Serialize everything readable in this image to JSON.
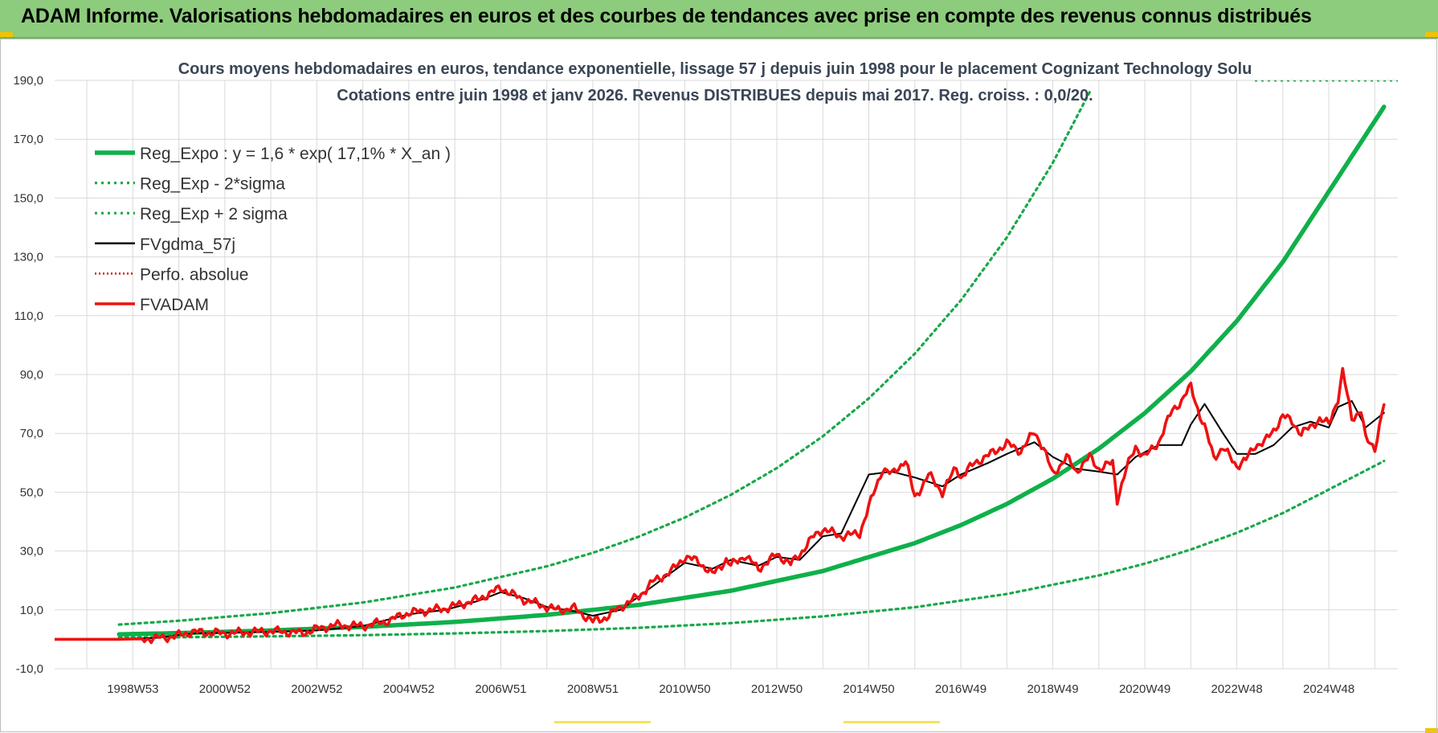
{
  "banner": {
    "title": "ADAM Informe. Valorisations hebdomadaires en euros et des courbes de tendances avec prise en compte des revenus connus distribués"
  },
  "colors": {
    "reg_expo": "#0fb04a",
    "reg_band": "#1aa84a",
    "fvgdma": "#000000",
    "perfo": "#e00000",
    "fvadam": "#ee1111",
    "banner": "#8dcc7c",
    "grid": "#d9d9d9"
  },
  "chart_data": {
    "type": "line",
    "title": "Cours moyens hebdomadaires en euros, tendance exponentielle, lissage 57 j depuis juin 1998 pour le placement Cognizant Technology Solu",
    "subtitle": "Cotations entre juin 1998 et janv 2026.  Revenus DISTRIBUES depuis mai 2017. Reg. croiss. : 0,0/20.",
    "xlabel": "",
    "ylabel": "",
    "xlim": [
      1997.3,
      2026.5
    ],
    "ylim": [
      -10,
      190
    ],
    "grid": true,
    "legend_position": "top-left",
    "y_ticks": [
      "-10,0",
      "10,0",
      "30,0",
      "50,0",
      "70,0",
      "90,0",
      "110,0",
      "130,0",
      "150,0",
      "170,0",
      "190,0"
    ],
    "x_ticks": [
      {
        "label": "1998W53",
        "x": 1999.0
      },
      {
        "label": "2000W52",
        "x": 2001.0
      },
      {
        "label": "2002W52",
        "x": 2003.0
      },
      {
        "label": "2004W52",
        "x": 2005.0
      },
      {
        "label": "2006W51",
        "x": 2007.0
      },
      {
        "label": "2008W51",
        "x": 2009.0
      },
      {
        "label": "2010W50",
        "x": 2011.0
      },
      {
        "label": "2012W50",
        "x": 2013.0
      },
      {
        "label": "2014W50",
        "x": 2015.0
      },
      {
        "label": "2016W49",
        "x": 2017.0
      },
      {
        "label": "2018W49",
        "x": 2019.0
      },
      {
        "label": "2020W49",
        "x": 2021.0
      },
      {
        "label": "2022W48",
        "x": 2023.0
      },
      {
        "label": "2024W48",
        "x": 2025.0
      }
    ],
    "series": [
      {
        "name": "Reg_Expo : y = 1,6 * exp( 17,1% *  X_an )",
        "style": "thick-solid",
        "x": [
          1998.7,
          2000.0,
          2002.0,
          2004.0,
          2006.0,
          2008.0,
          2010.0,
          2012.0,
          2014.0,
          2016.0,
          2017.0,
          2018.0,
          2019.0,
          2020.0,
          2021.0,
          2022.0,
          2023.0,
          2024.0,
          2025.0,
          2026.2
        ],
        "values": [
          1.7,
          2.1,
          3.0,
          4.2,
          5.9,
          8.3,
          11.7,
          16.5,
          23.2,
          32.7,
          38.8,
          46.0,
          54.6,
          64.8,
          76.9,
          91.1,
          108.2,
          128.3,
          152.2,
          181.0
        ]
      },
      {
        "name": "Reg_Exp - 2*sigma",
        "style": "dotted",
        "x": [
          1998.7,
          2000.0,
          2002.0,
          2004.0,
          2006.0,
          2008.0,
          2010.0,
          2012.0,
          2014.0,
          2016.0,
          2018.0,
          2020.0,
          2021.0,
          2022.0,
          2023.0,
          2024.0,
          2025.0,
          2026.2
        ],
        "values": [
          0.6,
          0.7,
          1.0,
          1.4,
          2.0,
          2.8,
          3.9,
          5.5,
          7.8,
          10.9,
          15.4,
          21.7,
          25.7,
          30.5,
          36.2,
          42.9,
          50.9,
          60.6
        ]
      },
      {
        "name": "Reg_Exp + 2 sigma",
        "style": "dotted",
        "x": [
          1998.7,
          2000.0,
          2002.0,
          2004.0,
          2006.0,
          2008.0,
          2009.0,
          2010.0,
          2011.0,
          2012.0,
          2013.0,
          2014.0,
          2015.0,
          2016.0,
          2017.0,
          2018.0,
          2019.0,
          2019.8
        ],
        "values": [
          5.0,
          6.3,
          8.9,
          12.5,
          17.6,
          24.8,
          29.4,
          34.9,
          41.4,
          49.1,
          58.2,
          69.0,
          81.9,
          97.1,
          115.2,
          136.6,
          162.0,
          186.0
        ]
      },
      {
        "name": "FVgdma_57j",
        "style": "thin-solid",
        "x": [
          1997.3,
          1998.7,
          1999.5,
          2000.3,
          2001.0,
          2002.0,
          2003.0,
          2004.0,
          2005.0,
          2005.8,
          2006.5,
          2007.0,
          2007.5,
          2008.0,
          2008.6,
          2009.0,
          2009.6,
          2010.3,
          2011.0,
          2011.6,
          2012.0,
          2012.6,
          2013.0,
          2013.5,
          2014.0,
          2014.4,
          2015.0,
          2015.5,
          2016.0,
          2016.6,
          2017.0,
          2017.6,
          2018.0,
          2018.6,
          2019.0,
          2019.5,
          2020.0,
          2020.4,
          2020.8,
          2021.3,
          2021.8,
          2022.0,
          2022.3,
          2022.7,
          2023.0,
          2023.4,
          2023.8,
          2024.2,
          2024.6,
          2025.0,
          2025.2,
          2025.5,
          2025.8,
          2026.2
        ],
        "values": [
          0,
          0,
          0.5,
          2.0,
          2.2,
          2.5,
          3.0,
          4.5,
          8.5,
          10.0,
          13.0,
          16.0,
          14.0,
          11.0,
          9.5,
          8.0,
          10.0,
          18.0,
          26.0,
          24.0,
          27.0,
          25.0,
          28.0,
          27.0,
          35.0,
          36.0,
          56.0,
          57.0,
          55.0,
          52.0,
          56.0,
          60.0,
          63.0,
          67.0,
          62.0,
          58.0,
          57.0,
          56.0,
          62.0,
          66.0,
          66.0,
          73.0,
          80.0,
          70.0,
          63.0,
          63.0,
          66.0,
          72.0,
          74.0,
          72.0,
          79.0,
          81.0,
          72.0,
          77.0
        ]
      },
      {
        "name": "Perfo. absolue",
        "style": "dotted-red",
        "x": [
          1997.3,
          1998.7,
          1999.5,
          2000.3,
          2001.0,
          2002.0,
          2003.0,
          2004.0,
          2005.0,
          2005.8,
          2006.5,
          2007.0,
          2007.5,
          2008.0,
          2008.6,
          2009.0,
          2009.6,
          2010.3,
          2011.0,
          2011.6,
          2012.0,
          2012.6,
          2013.0,
          2013.5,
          2014.0,
          2014.4,
          2015.0,
          2015.5,
          2016.0,
          2016.6,
          2017.0,
          2017.6,
          2018.0,
          2018.6,
          2019.0,
          2019.5,
          2020.0,
          2020.4,
          2020.8,
          2021.3,
          2021.8,
          2022.0,
          2022.3,
          2022.7,
          2023.0,
          2023.4,
          2023.8,
          2024.2,
          2024.6,
          2025.0,
          2025.2,
          2025.5,
          2025.8,
          2026.2
        ],
        "values": [
          0,
          0,
          0.5,
          2.0,
          2.2,
          2.5,
          3.0,
          4.5,
          8.5,
          10.0,
          13.0,
          16.0,
          14.0,
          11.0,
          9.5,
          8.0,
          10.0,
          18.0,
          26.0,
          24.0,
          27.0,
          25.0,
          28.0,
          27.0,
          35.0,
          36.0,
          56.0,
          57.0,
          55.0,
          52.0,
          56.0,
          60.0,
          63.0,
          67.0,
          62.0,
          58.0,
          57.0,
          56.0,
          62.0,
          66.0,
          66.0,
          73.0,
          80.0,
          70.0,
          63.0,
          63.0,
          66.0,
          72.0,
          74.0,
          72.0,
          79.0,
          81.0,
          72.0,
          77.0
        ]
      },
      {
        "name": "FVADAM",
        "style": "thick-solid-red",
        "x": [
          1997.3,
          1998.7,
          1999.5,
          1999.9,
          2000.3,
          2001.0,
          2002.0,
          2002.7,
          2003.0,
          2003.4,
          2004.0,
          2004.5,
          2005.0,
          2005.8,
          2006.5,
          2007.0,
          2007.4,
          2007.8,
          2008.2,
          2008.6,
          2009.0,
          2009.3,
          2009.6,
          2010.0,
          2010.3,
          2010.7,
          2011.0,
          2011.3,
          2011.6,
          2011.9,
          2012.0,
          2012.3,
          2012.6,
          2012.9,
          2013.0,
          2013.3,
          2013.5,
          2013.8,
          2014.0,
          2014.4,
          2014.8,
          2015.0,
          2015.3,
          2015.5,
          2015.8,
          2016.0,
          2016.3,
          2016.6,
          2016.9,
          2017.0,
          2017.3,
          2017.6,
          2018.0,
          2018.3,
          2018.6,
          2018.8,
          2019.0,
          2019.3,
          2019.5,
          2019.8,
          2020.0,
          2020.3,
          2020.4,
          2020.6,
          2020.8,
          2021.0,
          2021.3,
          2021.6,
          2021.8,
          2022.0,
          2022.2,
          2022.3,
          2022.5,
          2022.7,
          2023.0,
          2023.2,
          2023.4,
          2023.6,
          2023.8,
          2024.0,
          2024.2,
          2024.4,
          2024.6,
          2024.8,
          2025.0,
          2025.2,
          2025.3,
          2025.5,
          2025.7,
          2025.8,
          2026.0,
          2026.2
        ],
        "values": [
          0,
          0,
          0.3,
          1.0,
          2.5,
          2.0,
          2.8,
          2.2,
          3.5,
          4.8,
          4.5,
          6.0,
          9.0,
          10.5,
          13.5,
          17.5,
          14.0,
          12.0,
          10.0,
          10.5,
          6.0,
          7.5,
          11.0,
          14.5,
          19.5,
          23.0,
          28.0,
          26.5,
          22.0,
          27.0,
          25.0,
          28.5,
          24.0,
          27.5,
          29.0,
          25.5,
          29.0,
          35.0,
          37.5,
          35.0,
          36.0,
          45.0,
          58.0,
          56.0,
          61.0,
          48.0,
          56.0,
          50.0,
          58.5,
          55.0,
          60.0,
          62.5,
          66.5,
          64.0,
          70.5,
          65.0,
          56.0,
          62.0,
          57.0,
          62.0,
          58.0,
          60.0,
          47.5,
          58.0,
          65.5,
          62.0,
          67.0,
          78.0,
          81.0,
          86.0,
          76.0,
          72.0,
          62.0,
          65.0,
          59.0,
          61.0,
          66.0,
          67.0,
          71.0,
          76.0,
          74.0,
          70.0,
          72.0,
          75.0,
          73.0,
          82.0,
          91.0,
          75.0,
          78.0,
          68.0,
          65.0,
          80.0
        ]
      }
    ]
  }
}
